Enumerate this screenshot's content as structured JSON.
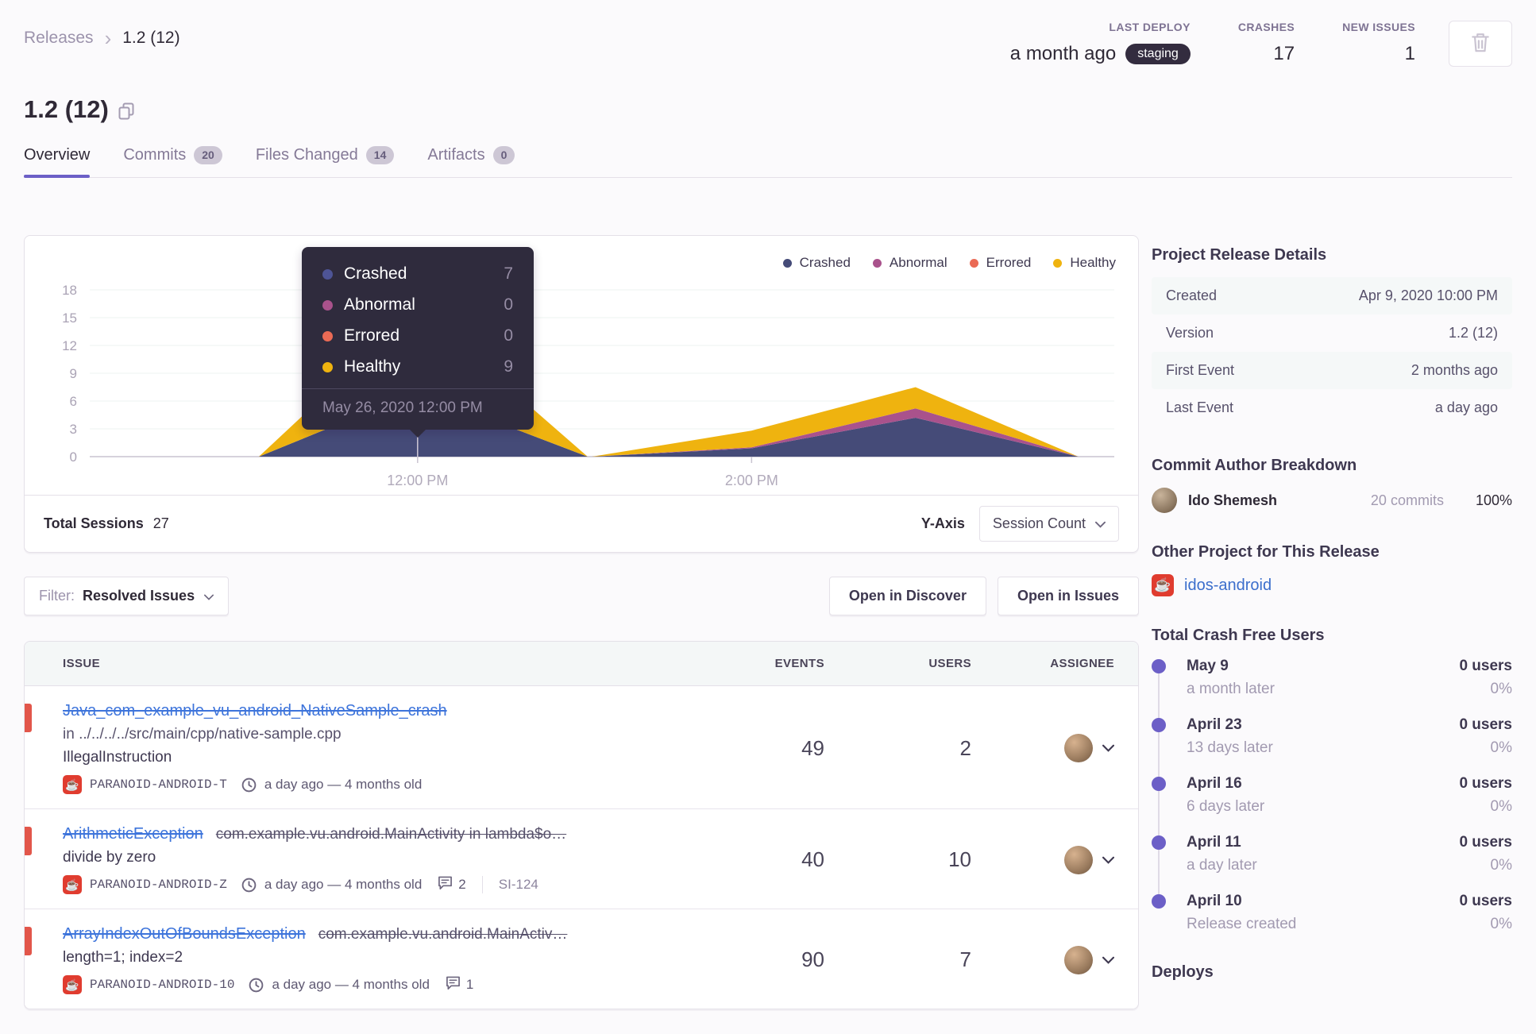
{
  "breadcrumb": {
    "parent": "Releases",
    "separator": "›",
    "current": "1.2 (12)"
  },
  "header": {
    "stats": [
      {
        "label": "LAST DEPLOY",
        "value": "a month ago",
        "badge": "staging"
      },
      {
        "label": "CRASHES",
        "value": "17"
      },
      {
        "label": "NEW ISSUES",
        "value": "1"
      }
    ]
  },
  "title": {
    "text": "1.2 (12)"
  },
  "tabs": [
    {
      "label": "Overview",
      "active": true
    },
    {
      "label": "Commits",
      "badge": "20"
    },
    {
      "label": "Files Changed",
      "badge": "14"
    },
    {
      "label": "Artifacts",
      "badge": "0"
    }
  ],
  "chart_card": {
    "legend": [
      {
        "label": "Crashed",
        "color": "#454B78"
      },
      {
        "label": "Abnormal",
        "color": "#A9528C"
      },
      {
        "label": "Errored",
        "color": "#EA6A55"
      },
      {
        "label": "Healthy",
        "color": "#EFB30F"
      }
    ],
    "tooltip": {
      "rows": [
        {
          "label": "Crashed",
          "value": "7",
          "color": "#4E5496"
        },
        {
          "label": "Abnormal",
          "value": "0",
          "color": "#A9528C"
        },
        {
          "label": "Errored",
          "value": "0",
          "color": "#EA6A55"
        },
        {
          "label": "Healthy",
          "value": "9",
          "color": "#EFB30F"
        }
      ],
      "footer": "May 26, 2020 12:00 PM"
    },
    "footer": {
      "total_label": "Total Sessions",
      "total_value": "27",
      "yaxis_label": "Y-Axis",
      "yaxis_button": "Session Count"
    }
  },
  "chart_data": {
    "type": "area",
    "stacked": true,
    "title": "Sessions by status over time",
    "ylim": [
      0,
      19.5
    ],
    "y_ticks": [
      0,
      3,
      6,
      9,
      12,
      15,
      18
    ],
    "x_tick_labels": [
      {
        "label": "12:00 PM",
        "x": 0.32
      },
      {
        "label": "2:00 PM",
        "x": 0.646
      }
    ],
    "points_x": [
      0.165,
      0.32,
      0.486,
      0.49,
      0.646,
      0.806,
      0.965
    ],
    "series": [
      {
        "name": "Crashed",
        "color": "#454B78",
        "values": [
          0,
          7,
          0,
          0,
          0.9,
          4.2,
          0
        ]
      },
      {
        "name": "Abnormal",
        "color": "#A9528C",
        "values": [
          0,
          0,
          0,
          0,
          0.1,
          1.0,
          0
        ]
      },
      {
        "name": "Errored",
        "color": "#EA6A55",
        "values": [
          0,
          0,
          0,
          0,
          0,
          0,
          0
        ]
      },
      {
        "name": "Healthy",
        "color": "#EFB30F",
        "values": [
          0,
          9,
          0,
          0,
          1.8,
          2.3,
          0
        ]
      }
    ],
    "tooltip_point": {
      "x_label": "May 26, 2020 12:00 PM",
      "values": {
        "Crashed": 7,
        "Abnormal": 0,
        "Errored": 0,
        "Healthy": 9
      }
    },
    "legend_position": "top-right",
    "grid": true
  },
  "issues_toolbar": {
    "filter_label": "Filter:",
    "filter_value": "Resolved Issues",
    "open_discover": "Open in Discover",
    "open_issues": "Open in Issues"
  },
  "issues_table": {
    "columns": [
      "ISSUE",
      "EVENTS",
      "USERS",
      "ASSIGNEE"
    ],
    "rows": [
      {
        "title": "Java_com_example_vu_android_NativeSample_crash",
        "culprit": "",
        "location": "in ../../../../src/main/cpp/native-sample.cpp",
        "message": "IllegalInstruction",
        "project": "PARANOID-ANDROID-T",
        "age": "a day ago — 4 months old",
        "comments": "",
        "short_id": "",
        "events": "49",
        "users": "2"
      },
      {
        "title": "ArithmeticException",
        "culprit": "com.example.vu.android.MainActivity in lambda$o…",
        "location": "",
        "message": "divide by zero",
        "project": "PARANOID-ANDROID-Z",
        "age": "a day ago — 4 months old",
        "comments": "2",
        "short_id": "SI-124",
        "events": "40",
        "users": "10"
      },
      {
        "title": "ArrayIndexOutOfBoundsException",
        "culprit": "com.example.vu.android.MainActiv…",
        "location": "",
        "message": "length=1; index=2",
        "project": "PARANOID-ANDROID-10",
        "age": "a day ago — 4 months old",
        "comments": "1",
        "short_id": "",
        "events": "90",
        "users": "7"
      }
    ]
  },
  "sidebar": {
    "release_details": {
      "heading": "Project Release Details",
      "rows": [
        {
          "label": "Created",
          "value": "Apr 9, 2020 10:00 PM"
        },
        {
          "label": "Version",
          "value": "1.2 (12)"
        },
        {
          "label": "First Event",
          "value": "2 months ago"
        },
        {
          "label": "Last Event",
          "value": "a day ago"
        }
      ]
    },
    "commit_authors": {
      "heading": "Commit Author Breakdown",
      "rows": [
        {
          "name": "Ido Shemesh",
          "commits": "20 commits",
          "percent": "100%"
        }
      ]
    },
    "other_projects": {
      "heading": "Other Project for This Release",
      "links": [
        "idos-android"
      ]
    },
    "crash_free": {
      "heading": "Total Crash Free Users",
      "items": [
        {
          "date": "May 9",
          "sub": "a month later",
          "users": "0 users",
          "percent": "0%"
        },
        {
          "date": "April 23",
          "sub": "13 days later",
          "users": "0 users",
          "percent": "0%"
        },
        {
          "date": "April 16",
          "sub": "6 days later",
          "users": "0 users",
          "percent": "0%"
        },
        {
          "date": "April 11",
          "sub": "a day later",
          "users": "0 users",
          "percent": "0%"
        },
        {
          "date": "April 10",
          "sub": "Release created",
          "users": "0 users",
          "percent": "0%"
        }
      ]
    },
    "deploys_heading": "Deploys"
  },
  "icons": {
    "project_glyph": "☕"
  },
  "colors": {
    "accent": "#6C5FC7",
    "link": "#3D74DB",
    "alert_red": "#E2564A",
    "project_red": "#E03C2F",
    "badge_dark": "#332C3F"
  }
}
